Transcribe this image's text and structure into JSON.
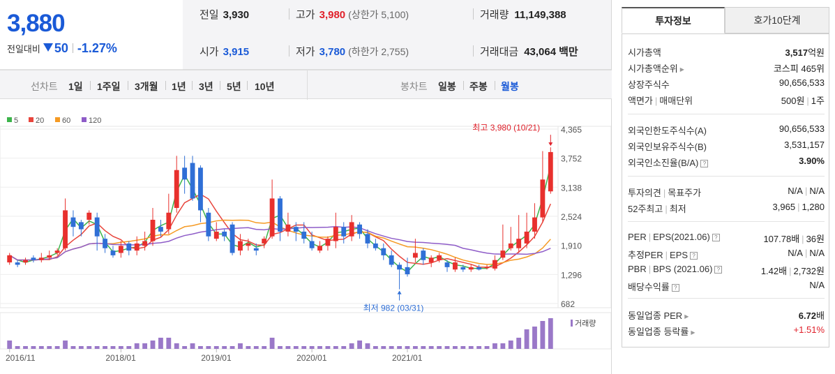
{
  "price": {
    "current": "3,880",
    "change_label": "전일대비",
    "change_amount": "50",
    "change_pct": "-1.27%"
  },
  "quote": {
    "prev_label": "전일",
    "prev_value": "3,930",
    "high_label": "고가",
    "high_value": "3,980",
    "upper_limit": "(상한가 5,100)",
    "volume_label": "거래량",
    "volume_value": "11,149,388",
    "open_label": "시가",
    "open_value": "3,915",
    "low_label": "저가",
    "low_value": "3,780",
    "lower_limit": "(하한가 2,755)",
    "amount_label": "거래대금",
    "amount_value": "43,064",
    "amount_unit": "백만"
  },
  "period": {
    "line_label": "선차트",
    "line_items": [
      "1일",
      "1주일",
      "3개월",
      "1년",
      "3년",
      "5년",
      "10년"
    ],
    "candle_label": "봉차트",
    "candle_items": [
      "일봉",
      "주봉",
      "월봉"
    ],
    "candle_selected": "월봉"
  },
  "tabs": {
    "invest": "투자정보",
    "hoga": "호가10단계"
  },
  "info": {
    "market_cap_label": "시가총액",
    "market_cap_value": "3,517",
    "market_cap_unit": "억원",
    "rank_label": "시가총액순위",
    "rank_value": "코스피 465위",
    "shares_label": "상장주식수",
    "shares_value": "90,656,533",
    "par_label": "액면가",
    "par_label2": "매매단위",
    "par_value": "500원",
    "par_value2": "1주",
    "foreign_limit_label": "외국인한도주식수(A)",
    "foreign_limit_value": "90,656,533",
    "foreign_hold_label": "외국인보유주식수(B)",
    "foreign_hold_value": "3,531,157",
    "foreign_ratio_label": "외국인소진율(B/A)",
    "foreign_ratio_value": "3.90%",
    "opinion_label": "투자의견",
    "opinion_label2": "목표주가",
    "opinion_value": "N/A",
    "opinion_value2": "N/A",
    "w52_label": "52주최고",
    "w52_label2": "최저",
    "w52_value": "3,965",
    "w52_value2": "1,280",
    "per_label": "PER",
    "per_label2": "EPS(2021.06)",
    "per_value": "107.78",
    "per_unit": "배",
    "per_value2": "36",
    "per_unit2": "원",
    "eper_label": "추정PER",
    "eper_label2": "EPS",
    "eper_value": "N/A",
    "eper_value2": "N/A",
    "pbr_label": "PBR",
    "pbr_label2": "BPS (2021.06)",
    "pbr_value": "1.42",
    "pbr_unit": "배",
    "pbr_value2": "2,732",
    "pbr_unit2": "원",
    "div_label": "배당수익률",
    "div_value": "N/A",
    "ind_per_label": "동일업종 PER",
    "ind_per_value": "6.72",
    "ind_per_unit": "배",
    "ind_chg_label": "동일업종 등락률",
    "ind_chg_value": "+1.51%"
  },
  "chart_data": {
    "type": "candlestick",
    "legend": [
      {
        "name": "5",
        "color": "#3cb44b"
      },
      {
        "name": "20",
        "color": "#e8453c"
      },
      {
        "name": "60",
        "color": "#f59a23"
      },
      {
        "name": "120",
        "color": "#8e5cc8"
      }
    ],
    "y_ticks": [
      4365,
      3752,
      3138,
      2524,
      1910,
      1296,
      682
    ],
    "ylim": [
      682,
      4365
    ],
    "x_ticks": [
      {
        "label": "2016/11",
        "index": 0
      },
      {
        "label": "2018/01",
        "index": 14
      },
      {
        "label": "2019/01",
        "index": 26
      },
      {
        "label": "2020/01",
        "index": 38
      },
      {
        "label": "2021/01",
        "index": 50
      }
    ],
    "high_annotation": "최고 3,980 (10/21)",
    "low_annotation": "최저 982 (03/31)",
    "volume_label": "거래량",
    "candles": [
      [
        1550,
        1700,
        1500,
        1750
      ],
      [
        1550,
        1500,
        1450,
        1600
      ],
      [
        1550,
        1600,
        1500,
        1650
      ],
      [
        1650,
        1600,
        1550,
        1700
      ],
      [
        1600,
        1650,
        1550,
        1750
      ],
      [
        1650,
        1700,
        1600,
        1800
      ],
      [
        1750,
        1800,
        1700,
        1850
      ],
      [
        1850,
        2650,
        1800,
        2900
      ],
      [
        2500,
        2300,
        2100,
        2650
      ],
      [
        2400,
        2250,
        2100,
        2450
      ],
      [
        2450,
        2600,
        2350,
        2650
      ],
      [
        2500,
        2100,
        1800,
        2600
      ],
      [
        2050,
        1850,
        1750,
        2150
      ],
      [
        1800,
        1700,
        1650,
        1900
      ],
      [
        1750,
        1900,
        1650,
        2000
      ],
      [
        1950,
        1800,
        1700,
        2000
      ],
      [
        1800,
        1950,
        1700,
        2100
      ],
      [
        1900,
        2000,
        1800,
        2200
      ],
      [
        2000,
        2450,
        1900,
        2700
      ],
      [
        2300,
        2200,
        2100,
        2450
      ],
      [
        2250,
        2600,
        2150,
        3000
      ],
      [
        2700,
        3500,
        2600,
        3800
      ],
      [
        3550,
        3300,
        3000,
        3800
      ],
      [
        3650,
        2900,
        2850,
        3800
      ],
      [
        3550,
        2650,
        2400,
        3600
      ],
      [
        2600,
        2100,
        2000,
        2700
      ],
      [
        2050,
        2200,
        2000,
        2400
      ],
      [
        2200,
        2100,
        2000,
        2250
      ],
      [
        2350,
        1750,
        1700,
        2400
      ],
      [
        1800,
        2000,
        1700,
        2150
      ],
      [
        1900,
        1950,
        1800,
        2050
      ],
      [
        1850,
        1800,
        1700,
        1950
      ],
      [
        1950,
        2050,
        1850,
        2100
      ],
      [
        2100,
        2900,
        2050,
        3300
      ],
      [
        2900,
        2200,
        2000,
        2950
      ],
      [
        2200,
        2350,
        2100,
        2600
      ],
      [
        2300,
        2200,
        2000,
        2400
      ],
      [
        2200,
        2050,
        1950,
        2400
      ],
      [
        2000,
        1850,
        1800,
        2200
      ],
      [
        1800,
        1900,
        1750,
        2000
      ],
      [
        1900,
        2050,
        1800,
        2100
      ],
      [
        2000,
        2300,
        1850,
        2600
      ],
      [
        2300,
        2100,
        1950,
        2400
      ],
      [
        2100,
        2400,
        2000,
        2550
      ],
      [
        2350,
        2150,
        2050,
        2400
      ],
      [
        2150,
        1950,
        1850,
        2250
      ],
      [
        1950,
        1850,
        1800,
        2050
      ],
      [
        1850,
        1700,
        1600,
        1950
      ],
      [
        1700,
        1500,
        1450,
        1800
      ],
      [
        1500,
        1400,
        982,
        1550
      ],
      [
        1450,
        1300,
        1250,
        1650
      ],
      [
        1650,
        1750,
        1550,
        2050
      ],
      [
        1800,
        1600,
        1500,
        1850
      ],
      [
        1550,
        1650,
        1450,
        1700
      ],
      [
        1600,
        1700,
        1550,
        1750
      ],
      [
        1550,
        1450,
        1350,
        1600
      ],
      [
        1400,
        1550,
        1350,
        1650
      ],
      [
        1450,
        1400,
        1350,
        1500
      ],
      [
        1400,
        1450,
        1350,
        1500
      ],
      [
        1450,
        1400,
        1380,
        1500
      ],
      [
        1430,
        1450,
        1400,
        1500
      ],
      [
        1420,
        1600,
        1380,
        1700
      ],
      [
        1650,
        1800,
        1600,
        2350
      ],
      [
        1850,
        1950,
        1800,
        2300
      ],
      [
        1850,
        2050,
        1750,
        2550
      ],
      [
        1950,
        2200,
        1850,
        2600
      ],
      [
        2200,
        2500,
        2050,
        2800
      ],
      [
        2500,
        3300,
        2400,
        3900
      ],
      [
        3050,
        3880,
        3000,
        3980
      ]
    ],
    "volume": [
      3,
      1,
      1,
      1,
      1,
      1,
      1,
      3,
      1,
      1,
      1,
      1,
      1,
      1,
      1,
      1,
      2,
      2,
      3,
      4,
      4,
      2,
      1,
      2,
      1,
      1,
      1,
      1,
      1,
      2,
      1,
      1,
      1,
      4,
      1,
      1,
      1,
      1,
      1,
      1,
      1,
      1,
      1,
      2,
      3,
      2,
      1,
      1,
      1,
      1,
      1,
      1,
      1,
      1,
      1,
      1,
      1,
      1,
      1,
      1,
      1,
      2,
      2,
      3,
      4,
      7,
      8,
      10,
      11
    ]
  }
}
